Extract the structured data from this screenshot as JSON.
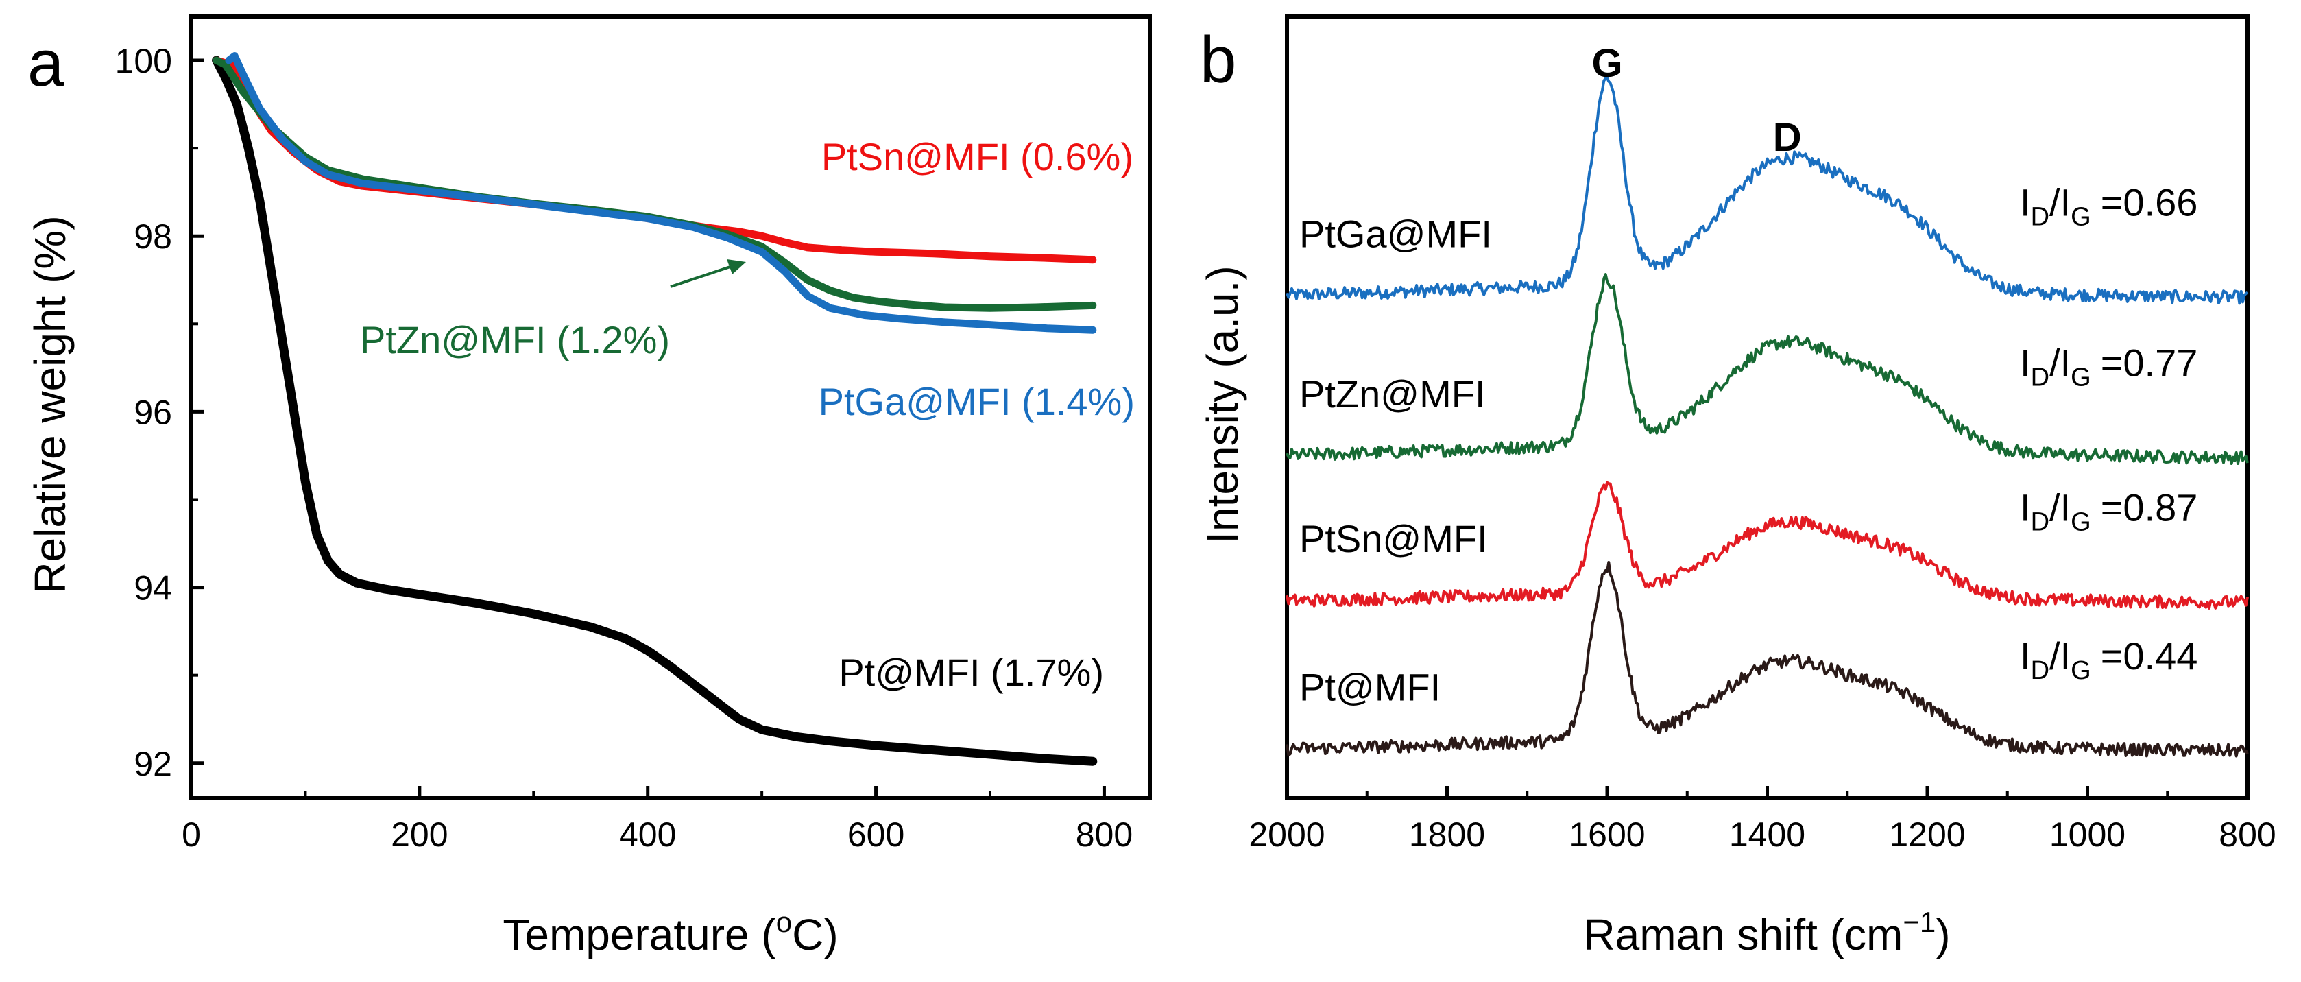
{
  "chart_data": [
    {
      "panel": "a",
      "type": "line",
      "xlabel_main": "Temperature (",
      "xlabel_sup": "o",
      "xlabel_end": "C)",
      "ylabel": "Relative weight (%)",
      "xlim": [
        0,
        840
      ],
      "ylim": [
        91.6,
        100.5
      ],
      "x_ticks": [
        0,
        200,
        400,
        600,
        800
      ],
      "y_ticks": [
        92,
        94,
        96,
        98,
        100
      ],
      "series": [
        {
          "id": "pt",
          "name": "Pt@MFI (1.7%)",
          "color": "#000000",
          "points": [
            [
              22,
              100
            ],
            [
              30,
              99.8
            ],
            [
              40,
              99.5
            ],
            [
              50,
              99.0
            ],
            [
              60,
              98.4
            ],
            [
              70,
              97.6
            ],
            [
              80,
              96.8
            ],
            [
              90,
              96.0
            ],
            [
              100,
              95.2
            ],
            [
              110,
              94.6
            ],
            [
              120,
              94.3
            ],
            [
              130,
              94.15
            ],
            [
              145,
              94.05
            ],
            [
              170,
              93.98
            ],
            [
              200,
              93.92
            ],
            [
              250,
              93.82
            ],
            [
              300,
              93.7
            ],
            [
              350,
              93.55
            ],
            [
              380,
              93.42
            ],
            [
              400,
              93.28
            ],
            [
              420,
              93.1
            ],
            [
              440,
              92.9
            ],
            [
              460,
              92.7
            ],
            [
              480,
              92.5
            ],
            [
              500,
              92.38
            ],
            [
              530,
              92.3
            ],
            [
              560,
              92.25
            ],
            [
              600,
              92.2
            ],
            [
              650,
              92.15
            ],
            [
              700,
              92.1
            ],
            [
              750,
              92.05
            ],
            [
              790,
              92.02
            ]
          ]
        },
        {
          "id": "ptsn",
          "name": "PtSn@MFI (0.6%)",
          "color": "#ee1111",
          "points": [
            [
              22,
              100
            ],
            [
              35,
              99.95
            ],
            [
              50,
              99.6
            ],
            [
              70,
              99.2
            ],
            [
              90,
              98.95
            ],
            [
              110,
              98.75
            ],
            [
              130,
              98.62
            ],
            [
              150,
              98.57
            ],
            [
              200,
              98.5
            ],
            [
              250,
              98.43
            ],
            [
              300,
              98.36
            ],
            [
              350,
              98.3
            ],
            [
              400,
              98.2
            ],
            [
              450,
              98.1
            ],
            [
              480,
              98.05
            ],
            [
              500,
              98.0
            ],
            [
              520,
              97.93
            ],
            [
              540,
              97.87
            ],
            [
              570,
              97.84
            ],
            [
              600,
              97.82
            ],
            [
              650,
              97.8
            ],
            [
              700,
              97.77
            ],
            [
              750,
              97.75
            ],
            [
              790,
              97.73
            ]
          ]
        },
        {
          "id": "ptzn",
          "name": "PtZn@MFI (1.2%)",
          "color": "#176a34",
          "points": [
            [
              22,
              100
            ],
            [
              30,
              99.95
            ],
            [
              45,
              99.65
            ],
            [
              70,
              99.25
            ],
            [
              100,
              98.9
            ],
            [
              120,
              98.75
            ],
            [
              150,
              98.65
            ],
            [
              200,
              98.55
            ],
            [
              250,
              98.45
            ],
            [
              300,
              98.37
            ],
            [
              350,
              98.3
            ],
            [
              400,
              98.22
            ],
            [
              440,
              98.12
            ],
            [
              470,
              98.02
            ],
            [
              500,
              97.88
            ],
            [
              520,
              97.7
            ],
            [
              540,
              97.5
            ],
            [
              560,
              97.38
            ],
            [
              580,
              97.3
            ],
            [
              600,
              97.26
            ],
            [
              630,
              97.22
            ],
            [
              660,
              97.19
            ],
            [
              700,
              97.18
            ],
            [
              740,
              97.19
            ],
            [
              790,
              97.21
            ]
          ]
        },
        {
          "id": "ptga",
          "name": "PtGa@MFI (1.4%)",
          "color": "#1a6fc0",
          "points": [
            [
              33,
              100
            ],
            [
              38,
              100.05
            ],
            [
              45,
              99.85
            ],
            [
              60,
              99.45
            ],
            [
              80,
              99.1
            ],
            [
              100,
              98.85
            ],
            [
              120,
              98.7
            ],
            [
              150,
              98.6
            ],
            [
              200,
              98.52
            ],
            [
              250,
              98.44
            ],
            [
              300,
              98.36
            ],
            [
              350,
              98.28
            ],
            [
              400,
              98.2
            ],
            [
              440,
              98.1
            ],
            [
              470,
              97.98
            ],
            [
              500,
              97.82
            ],
            [
              520,
              97.6
            ],
            [
              540,
              97.32
            ],
            [
              560,
              97.18
            ],
            [
              590,
              97.1
            ],
            [
              620,
              97.06
            ],
            [
              660,
              97.02
            ],
            [
              700,
              96.99
            ],
            [
              750,
              96.95
            ],
            [
              790,
              96.93
            ]
          ]
        }
      ],
      "annotations": [
        {
          "text": "PtSn@MFI (0.6%)",
          "color": "#ee1111"
        },
        {
          "text": "PtZn@MFI (1.2%)",
          "color": "#176a34"
        },
        {
          "text": "PtGa@MFI (1.4%)",
          "color": "#1a6fc0"
        },
        {
          "text": "Pt@MFI (1.7%)",
          "color": "#000000"
        }
      ]
    },
    {
      "panel": "b",
      "type": "line",
      "xlabel_main": "Raman shift (cm",
      "xlabel_sup": "−1",
      "xlabel_end": ")",
      "ylabel": "Intensity (a.u.)",
      "xlim": [
        2000,
        800
      ],
      "ylim": [
        0,
        100
      ],
      "x_ticks": [
        2000,
        1800,
        1600,
        1400,
        1200,
        1000,
        800
      ],
      "y_ticks": [],
      "peak_labels": [
        {
          "text": "G",
          "x": 1600
        },
        {
          "text": "D",
          "x": 1375
        }
      ],
      "series": [
        {
          "id": "ptga",
          "name": "PtGa@MFI",
          "color": "#1a6fc0",
          "baseline": 64.0,
          "g_height": 26.0,
          "d_height": 16.0,
          "tail": 1.8,
          "ratio_main": "I",
          "ratio_sub1": "D",
          "ratio_mid": "/I",
          "ratio_sub2": "G",
          "ratio_value": "=0.66"
        },
        {
          "id": "ptzn",
          "name": "PtZn@MFI",
          "color": "#176a34",
          "baseline": 43.5,
          "g_height": 21.0,
          "d_height": 13.0,
          "tail": 1.8,
          "ratio_main": "I",
          "ratio_sub1": "D",
          "ratio_mid": "/I",
          "ratio_sub2": "G",
          "ratio_value": "=0.77"
        },
        {
          "id": "ptsn",
          "name": "PtSn@MFI",
          "color": "#e31b23",
          "baseline": 25.0,
          "g_height": 13.5,
          "d_height": 9.0,
          "tail": 1.3,
          "ratio_main": "I",
          "ratio_sub1": "D",
          "ratio_mid": "/I",
          "ratio_sub2": "G",
          "ratio_value": "=0.87"
        },
        {
          "id": "pt",
          "name": "Pt@MFI",
          "color": "#2a1a18",
          "baseline": 6.0,
          "g_height": 22.0,
          "d_height": 10.0,
          "tail": 1.5,
          "ratio_main": "I",
          "ratio_sub1": "D",
          "ratio_mid": "/I",
          "ratio_sub2": "G",
          "ratio_value": "=0.44"
        }
      ]
    }
  ]
}
